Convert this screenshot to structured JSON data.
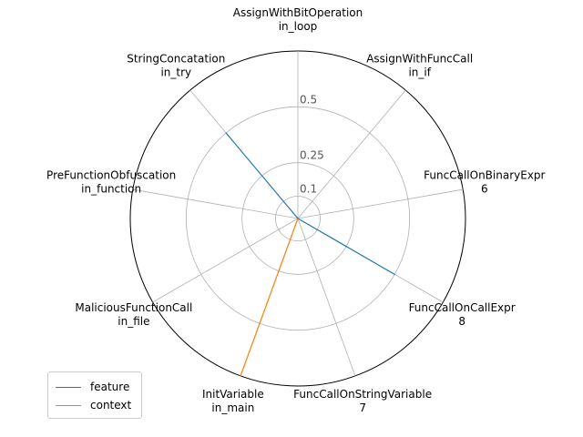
{
  "chart_data": {
    "type": "radar",
    "axes": [
      {
        "line1": "AssignWithBitOperation",
        "line2": "in_loop"
      },
      {
        "line1": "AssignWithFuncCall",
        "line2": "in_if"
      },
      {
        "line1": "FuncCallOnBinaryExpr",
        "line2": "6"
      },
      {
        "line1": "FuncCallOnCallExpr",
        "line2": "8"
      },
      {
        "line1": "FuncCallOnStringVariable",
        "line2": "7"
      },
      {
        "line1": "InitVariable",
        "line2": "in_main"
      },
      {
        "line1": "MaliciousFunctionCall",
        "line2": "in_file"
      },
      {
        "line1": "PreFunctionObfuscation",
        "line2": "in_function"
      },
      {
        "line1": "StringConcatation",
        "line2": "in_try"
      }
    ],
    "radial_ticks": [
      0.1,
      0.25,
      0.5
    ],
    "radial_tick_labels": [
      "0.1",
      "0.25",
      "0.5"
    ],
    "rlim": [
      0,
      0.75
    ],
    "series": [
      {
        "name": "feature",
        "color": "#1f77b4",
        "values": [
          0,
          0,
          0,
          0.5,
          0,
          0,
          0,
          0,
          0.5
        ]
      },
      {
        "name": "context",
        "color": "#ff7f0e",
        "values": [
          0,
          0,
          0,
          0,
          0,
          0.75,
          0,
          0,
          0
        ]
      }
    ],
    "legend": {
      "position": "lower-left"
    }
  }
}
